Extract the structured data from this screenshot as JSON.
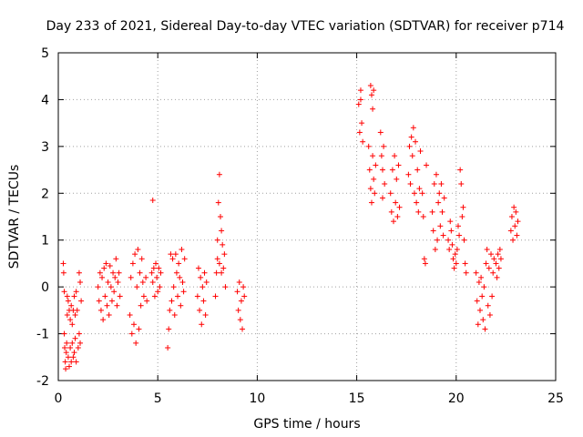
{
  "chart_data": {
    "type": "scatter",
    "title": "Day 233 of 2021, Sidereal Day-to-day VTEC variation (SDTVAR) for receiver p714",
    "xlabel": "GPS time / hours",
    "ylabel": "SDTVAR / TECUs",
    "xlim": [
      0,
      25
    ],
    "ylim": [
      -2,
      5
    ],
    "xticks": [
      "0",
      "5",
      "10",
      "15",
      "20",
      "25"
    ],
    "yticks": [
      "-2",
      "-1",
      "0",
      "1",
      "2",
      "3",
      "4",
      "5"
    ],
    "grid": true,
    "marker": "+",
    "color": "#ff0000",
    "series": [
      {
        "name": "SDTVAR",
        "points": [
          [
            0.25,
            0.5
          ],
          [
            0.27,
            0.3
          ],
          [
            0.3,
            -0.1
          ],
          [
            0.3,
            -1.0
          ],
          [
            0.32,
            -1.3
          ],
          [
            0.35,
            -1.6
          ],
          [
            0.37,
            -1.75
          ],
          [
            0.4,
            -1.4
          ],
          [
            0.42,
            -1.2
          ],
          [
            0.45,
            -0.6
          ],
          [
            0.45,
            -0.2
          ],
          [
            0.5,
            -0.3
          ],
          [
            0.5,
            -1.5
          ],
          [
            0.55,
            -0.5
          ],
          [
            0.55,
            -1.7
          ],
          [
            0.6,
            -0.7
          ],
          [
            0.6,
            -1.3
          ],
          [
            0.65,
            -0.4
          ],
          [
            0.65,
            -1.6
          ],
          [
            0.7,
            -0.8
          ],
          [
            0.7,
            -1.2
          ],
          [
            0.75,
            -0.5
          ],
          [
            0.75,
            -1.5
          ],
          [
            0.8,
            -0.2
          ],
          [
            0.8,
            -1.4
          ],
          [
            0.85,
            -0.6
          ],
          [
            0.85,
            -1.1
          ],
          [
            0.9,
            -0.1
          ],
          [
            0.9,
            -1.6
          ],
          [
            0.95,
            -0.5
          ],
          [
            1.0,
            -1.3
          ],
          [
            1.05,
            0.3
          ],
          [
            1.05,
            -1.0
          ],
          [
            1.1,
            0.1
          ],
          [
            1.1,
            -1.2
          ],
          [
            1.15,
            -0.3
          ],
          [
            2.0,
            0.0
          ],
          [
            2.05,
            -0.3
          ],
          [
            2.1,
            0.3
          ],
          [
            2.15,
            -0.5
          ],
          [
            2.2,
            0.2
          ],
          [
            2.25,
            -0.7
          ],
          [
            2.3,
            0.4
          ],
          [
            2.35,
            -0.2
          ],
          [
            2.4,
            0.5
          ],
          [
            2.45,
            -0.4
          ],
          [
            2.5,
            0.1
          ],
          [
            2.55,
            -0.6
          ],
          [
            2.6,
            0.45
          ],
          [
            2.65,
            0.0
          ],
          [
            2.7,
            -0.3
          ],
          [
            2.75,
            0.3
          ],
          [
            2.8,
            -0.1
          ],
          [
            2.85,
            0.2
          ],
          [
            2.9,
            0.6
          ],
          [
            2.95,
            -0.4
          ],
          [
            3.0,
            0.1
          ],
          [
            3.05,
            0.3
          ],
          [
            3.1,
            -0.2
          ],
          [
            3.6,
            -0.6
          ],
          [
            3.65,
            0.2
          ],
          [
            3.7,
            -1.0
          ],
          [
            3.75,
            0.5
          ],
          [
            3.8,
            -0.8
          ],
          [
            3.85,
            0.7
          ],
          [
            3.9,
            -1.2
          ],
          [
            3.95,
            0.0
          ],
          [
            4.0,
            0.8
          ],
          [
            4.05,
            -0.9
          ],
          [
            4.1,
            0.3
          ],
          [
            4.15,
            -0.4
          ],
          [
            4.2,
            0.6
          ],
          [
            4.25,
            0.1
          ],
          [
            4.3,
            -0.2
          ],
          [
            4.4,
            0.2
          ],
          [
            4.45,
            -0.3
          ],
          [
            4.7,
            0.3
          ],
          [
            4.75,
            0.1
          ],
          [
            4.8,
            0.4
          ],
          [
            4.85,
            -0.2
          ],
          [
            4.9,
            0.5
          ],
          [
            4.95,
            0.2
          ],
          [
            5.0,
            -0.1
          ],
          [
            5.05,
            0.4
          ],
          [
            5.1,
            0.0
          ],
          [
            5.15,
            0.3
          ],
          [
            4.75,
            1.85
          ],
          [
            5.5,
            -1.3
          ],
          [
            5.55,
            -0.9
          ],
          [
            5.6,
            -0.5
          ],
          [
            5.65,
            0.7
          ],
          [
            5.7,
            -0.3
          ],
          [
            5.75,
            0.6
          ],
          [
            5.8,
            0.0
          ],
          [
            5.85,
            -0.6
          ],
          [
            5.9,
            0.7
          ],
          [
            5.95,
            0.3
          ],
          [
            6.0,
            -0.2
          ],
          [
            6.05,
            0.5
          ],
          [
            6.1,
            0.2
          ],
          [
            6.15,
            -0.4
          ],
          [
            6.2,
            0.8
          ],
          [
            6.25,
            0.1
          ],
          [
            6.3,
            -0.1
          ],
          [
            6.35,
            0.6
          ],
          [
            7.0,
            -0.2
          ],
          [
            7.05,
            0.4
          ],
          [
            7.1,
            -0.5
          ],
          [
            7.15,
            0.2
          ],
          [
            7.2,
            -0.8
          ],
          [
            7.25,
            0.0
          ],
          [
            7.3,
            -0.3
          ],
          [
            7.35,
            0.3
          ],
          [
            7.4,
            -0.6
          ],
          [
            7.45,
            0.1
          ],
          [
            7.9,
            -0.2
          ],
          [
            7.95,
            0.3
          ],
          [
            8.0,
            0.6
          ],
          [
            8.05,
            1.8
          ],
          [
            8.1,
            2.4
          ],
          [
            8.15,
            1.5
          ],
          [
            8.2,
            1.2
          ],
          [
            8.25,
            0.9
          ],
          [
            8.3,
            0.4
          ],
          [
            8.35,
            0.7
          ],
          [
            8.4,
            0.0
          ],
          [
            8.1,
            0.5
          ],
          [
            8.0,
            1.0
          ],
          [
            8.2,
            0.3
          ],
          [
            9.0,
            -0.1
          ],
          [
            9.05,
            -0.5
          ],
          [
            9.1,
            0.1
          ],
          [
            9.15,
            -0.7
          ],
          [
            9.2,
            -0.3
          ],
          [
            9.25,
            -0.9
          ],
          [
            9.3,
            0.0
          ],
          [
            9.35,
            -0.2
          ],
          [
            15.1,
            3.9
          ],
          [
            15.15,
            3.3
          ],
          [
            15.2,
            4.2
          ],
          [
            15.25,
            3.5
          ],
          [
            15.3,
            3.1
          ],
          [
            15.2,
            4.0
          ],
          [
            15.7,
            4.3
          ],
          [
            15.75,
            4.1
          ],
          [
            15.8,
            3.8
          ],
          [
            15.85,
            4.2
          ],
          [
            15.6,
            3.0
          ],
          [
            15.65,
            2.5
          ],
          [
            15.7,
            2.1
          ],
          [
            15.75,
            1.8
          ],
          [
            15.8,
            2.8
          ],
          [
            15.85,
            2.3
          ],
          [
            15.9,
            2.0
          ],
          [
            15.95,
            2.6
          ],
          [
            16.2,
            3.3
          ],
          [
            16.25,
            2.8
          ],
          [
            16.3,
            2.5
          ],
          [
            16.35,
            3.0
          ],
          [
            16.4,
            2.2
          ],
          [
            16.3,
            1.9
          ],
          [
            16.7,
            2.0
          ],
          [
            16.75,
            1.6
          ],
          [
            16.8,
            2.5
          ],
          [
            16.85,
            1.4
          ],
          [
            16.9,
            2.8
          ],
          [
            16.95,
            1.8
          ],
          [
            17.0,
            2.3
          ],
          [
            17.05,
            1.5
          ],
          [
            17.1,
            2.6
          ],
          [
            17.15,
            1.7
          ],
          [
            17.6,
            2.4
          ],
          [
            17.65,
            3.0
          ],
          [
            17.7,
            2.2
          ],
          [
            17.75,
            3.2
          ],
          [
            17.8,
            2.8
          ],
          [
            17.85,
            3.4
          ],
          [
            17.9,
            2.0
          ],
          [
            17.95,
            3.1
          ],
          [
            18.0,
            1.8
          ],
          [
            18.05,
            2.5
          ],
          [
            18.1,
            1.6
          ],
          [
            18.15,
            2.1
          ],
          [
            18.2,
            2.9
          ],
          [
            18.3,
            2.0
          ],
          [
            18.35,
            1.5
          ],
          [
            18.4,
            0.6
          ],
          [
            18.45,
            0.5
          ],
          [
            18.5,
            2.6
          ],
          [
            18.8,
            1.6
          ],
          [
            18.85,
            1.2
          ],
          [
            18.9,
            2.2
          ],
          [
            18.95,
            0.8
          ],
          [
            19.0,
            2.4
          ],
          [
            19.05,
            1.0
          ],
          [
            19.1,
            1.8
          ],
          [
            19.15,
            2.0
          ],
          [
            19.2,
            1.3
          ],
          [
            19.25,
            2.2
          ],
          [
            19.3,
            1.6
          ],
          [
            19.35,
            1.1
          ],
          [
            19.4,
            1.9
          ],
          [
            19.6,
            1.0
          ],
          [
            19.65,
            0.8
          ],
          [
            19.7,
            1.4
          ],
          [
            19.75,
            1.2
          ],
          [
            19.8,
            0.9
          ],
          [
            19.85,
            0.6
          ],
          [
            19.9,
            0.4
          ],
          [
            19.95,
            0.7
          ],
          [
            20.0,
            0.5
          ],
          [
            20.05,
            0.8
          ],
          [
            20.1,
            1.3
          ],
          [
            20.15,
            1.1
          ],
          [
            20.2,
            2.5
          ],
          [
            20.25,
            2.2
          ],
          [
            20.3,
            1.5
          ],
          [
            20.35,
            1.7
          ],
          [
            20.4,
            1.0
          ],
          [
            20.45,
            0.5
          ],
          [
            20.5,
            0.3
          ],
          [
            21.0,
            0.3
          ],
          [
            21.05,
            -0.3
          ],
          [
            21.1,
            -0.8
          ],
          [
            21.15,
            0.1
          ],
          [
            21.2,
            -0.5
          ],
          [
            21.25,
            0.2
          ],
          [
            21.3,
            -0.2
          ],
          [
            21.35,
            -0.7
          ],
          [
            21.4,
            0.0
          ],
          [
            21.45,
            -0.9
          ],
          [
            21.5,
            0.5
          ],
          [
            21.55,
            0.8
          ],
          [
            21.6,
            -0.4
          ],
          [
            21.65,
            0.4
          ],
          [
            21.7,
            -0.6
          ],
          [
            21.75,
            0.7
          ],
          [
            21.8,
            -0.2
          ],
          [
            21.85,
            0.3
          ],
          [
            21.9,
            0.6
          ],
          [
            22.0,
            0.5
          ],
          [
            22.05,
            0.2
          ],
          [
            22.1,
            0.7
          ],
          [
            22.15,
            0.4
          ],
          [
            22.2,
            0.8
          ],
          [
            22.25,
            0.6
          ],
          [
            22.75,
            1.2
          ],
          [
            22.8,
            1.5
          ],
          [
            22.85,
            1.0
          ],
          [
            22.9,
            1.7
          ],
          [
            22.95,
            1.3
          ],
          [
            23.0,
            1.6
          ],
          [
            23.05,
            1.1
          ],
          [
            23.1,
            1.4
          ]
        ]
      }
    ]
  }
}
